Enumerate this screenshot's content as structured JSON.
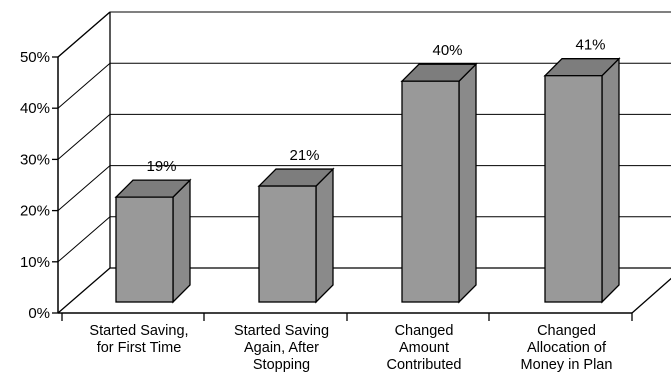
{
  "chart_data": {
    "type": "bar",
    "title": "",
    "xlabel": "",
    "ylabel": "",
    "ylim": [
      0,
      50
    ],
    "y_ticks": [
      "0%",
      "10%",
      "20%",
      "30%",
      "40%",
      "50%"
    ],
    "categories": [
      [
        "Started Saving,",
        "for First Time"
      ],
      [
        "Started Saving",
        "Again, After",
        "Stopping"
      ],
      [
        "Changed",
        "Amount",
        "Contributed"
      ],
      [
        "Changed",
        "Allocation of",
        "Money in Plan"
      ]
    ],
    "values": [
      19,
      21,
      40,
      41
    ],
    "data_labels": [
      "19%",
      "21%",
      "40%",
      "41%"
    ],
    "grid": true,
    "style": "3d",
    "colors": {
      "bar_front": "#999999",
      "bar_top": "#7d7d7d",
      "bar_side": "#8a8a8a",
      "axis": "#000000"
    }
  }
}
